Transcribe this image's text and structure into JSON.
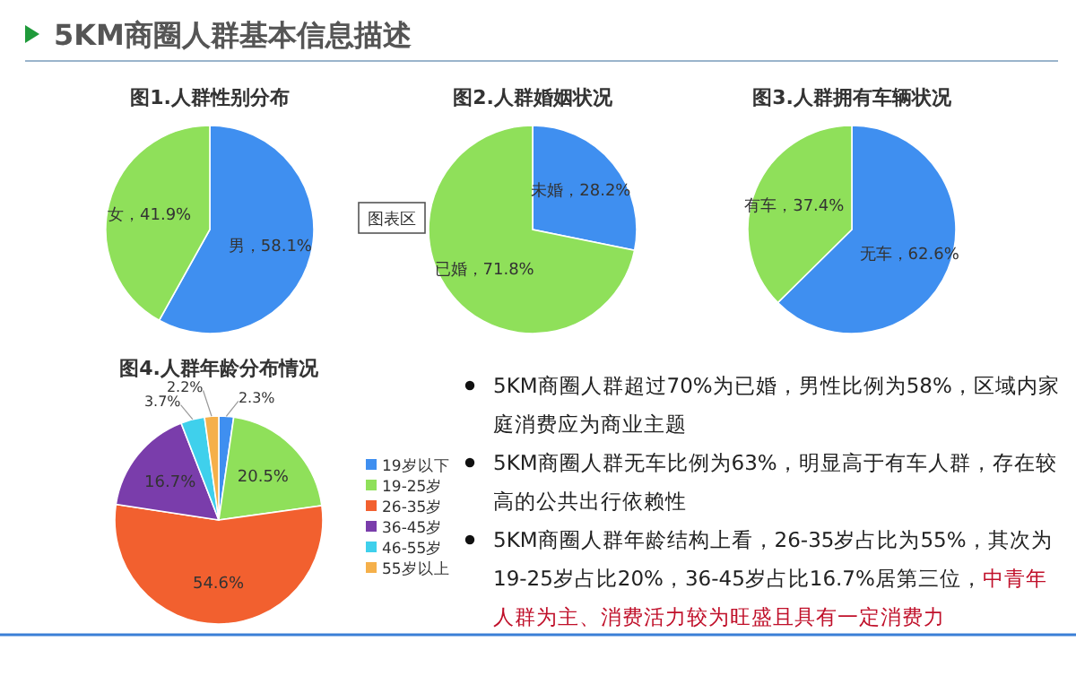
{
  "chart_data": [
    {
      "type": "pie",
      "title": "图1.人群性别分布",
      "categories": [
        "男",
        "女"
      ],
      "values": [
        58.1,
        41.9
      ],
      "colors": [
        "#3f8ff0",
        "#8fe05a"
      ],
      "value_labels": [
        "，58.1%",
        "，41.9%"
      ],
      "legend": false
    },
    {
      "type": "pie",
      "title": "图2.人群婚姻状况",
      "categories": [
        "未婚",
        "已婚"
      ],
      "values": [
        28.2,
        71.8
      ],
      "colors": [
        "#3f8ff0",
        "#8fe05a"
      ],
      "value_labels": [
        "，28.2%",
        "，71.8%"
      ],
      "legend": false,
      "annotations": [
        "图表区"
      ]
    },
    {
      "type": "pie",
      "title": "图3.人群拥有车辆状况",
      "categories": [
        "无车",
        "有车"
      ],
      "values": [
        62.6,
        37.4
      ],
      "colors": [
        "#3f8ff0",
        "#8fe05a"
      ],
      "value_labels": [
        "，62.6%",
        "，37.4%"
      ],
      "legend": false
    },
    {
      "type": "pie",
      "title": "图4.人群年龄分布情况",
      "categories": [
        "19岁以下",
        "19-25岁",
        "26-35岁",
        "36-45岁",
        "46-55岁",
        "55岁以上"
      ],
      "values": [
        2.3,
        20.5,
        54.6,
        16.7,
        3.7,
        2.2
      ],
      "colors": [
        "#3f8ff0",
        "#8fe05a",
        "#f2602f",
        "#7a3dab",
        "#3fd0ec",
        "#f5b04a"
      ],
      "value_labels": [
        "2.3%",
        "20.5%",
        "54.6%",
        "16.7%",
        "3.7%",
        "2.2%"
      ],
      "legend": "right"
    },
    {
      "type": "other",
      "title": "5KM商圈人群基本信息描述",
      "annotations": [
        "5KM商圈人群超过70%为已婚，男性比例为58%，区域内家庭消费应为商业主题",
        "5KM商圈人群无车比例为63%，明显高于有车人群，存在较高的公共出行依赖性",
        "5KM商圈人群年龄结构上看，26-35岁占比为55%，其次为19-25岁占比20%，36-45岁占比16.7%居第三位，",
        "中青年人群为主、消费活力较为旺盛且具有一定消费力"
      ]
    }
  ]
}
